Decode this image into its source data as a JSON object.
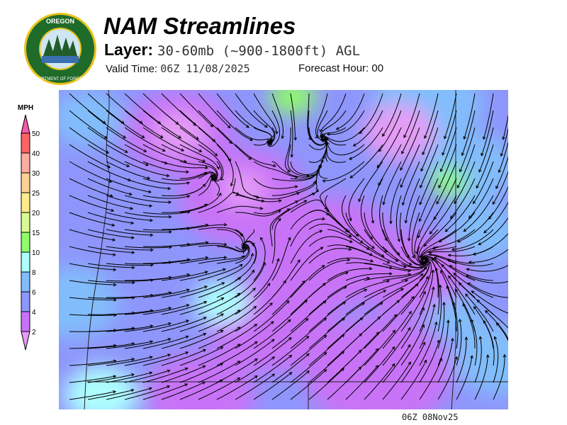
{
  "header": {
    "title": "NAM Streamlines",
    "layer_label": "Layer:",
    "layer_value": "30-60mb (~900-1800ft) AGL",
    "valid_label": "Valid Time:",
    "valid_value": "06Z 11/08/2025",
    "forecast_label": "Forecast Hour:",
    "forecast_value": "00"
  },
  "logo": {
    "text": "OREGON DEPARTMENT OF FORESTRY",
    "colors": {
      "ring": "#1f6b2a",
      "border": "#e8c21a"
    }
  },
  "legend": {
    "unit": "MPH",
    "levels": [
      2,
      4,
      6,
      8,
      10,
      15,
      20,
      25,
      30,
      40,
      50
    ],
    "colors": [
      "#e59cf5",
      "#c873f7",
      "#8e96fb",
      "#82bdfb",
      "#adfefe",
      "#8ffc6c",
      "#d8fc95",
      "#fdeb8c",
      "#fdd196",
      "#fcaca0",
      "#fb6464",
      "#f45aa8"
    ]
  },
  "footer": {
    "stamp": "06Z 08Nov25"
  }
}
